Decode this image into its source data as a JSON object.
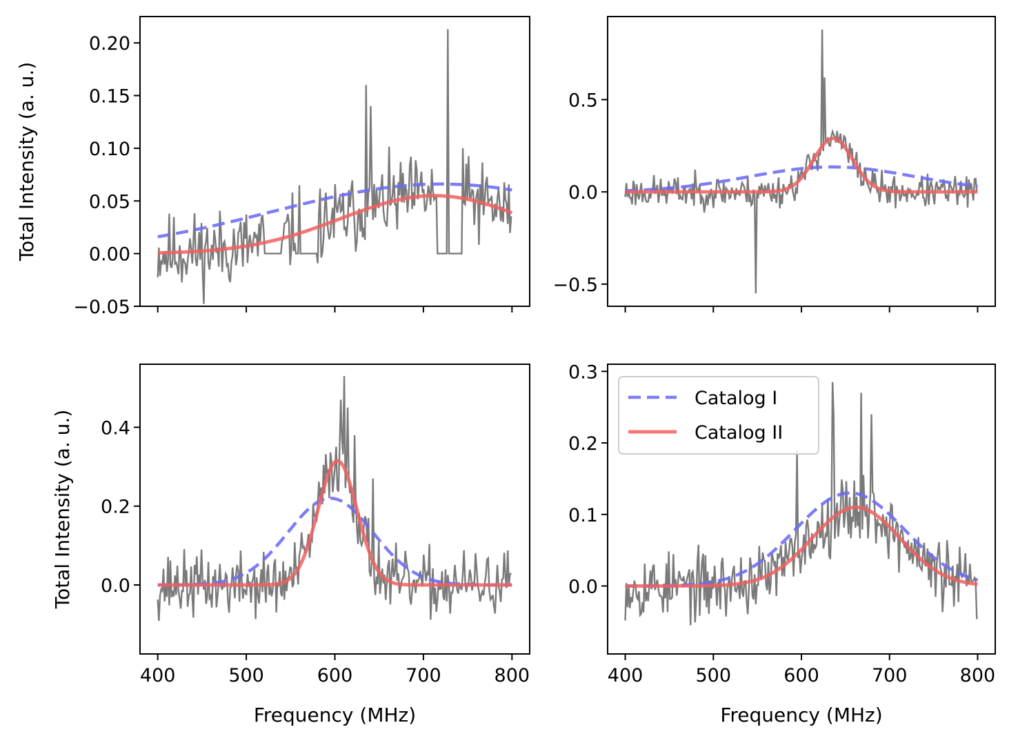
{
  "chart_data": [
    {
      "type": "line",
      "panel": "top-left",
      "xlabel": "",
      "ylabel": "Total Intensity (a. u.)",
      "xlim": [
        380,
        820
      ],
      "ylim": [
        -0.05,
        0.225
      ],
      "xticks": [
        400,
        500,
        600,
        700,
        800
      ],
      "xtick_labels_shown": false,
      "yticks": [
        -0.05,
        0.0,
        0.05,
        0.1,
        0.15,
        0.2
      ],
      "ytick_labels": [
        "−0.05",
        "0.00",
        "0.05",
        "0.10",
        "0.15",
        "0.20"
      ],
      "grid": false,
      "noise": {
        "amp": 0.032,
        "seed": 11,
        "spikes": [
          [
            560,
            0.065
          ],
          [
            635,
            0.16
          ],
          [
            640,
            0.14
          ],
          [
            727,
            0.213
          ],
          [
            745,
            0.1
          ]
        ],
        "gaps": [
          [
            520,
            540
          ],
          [
            555,
            580
          ],
          [
            715,
            745
          ]
        ]
      },
      "series": [
        {
          "name": "Catalog I",
          "model": "gauss",
          "amp": 0.066,
          "center": 720,
          "sigma": 190
        },
        {
          "name": "Catalog II",
          "model": "gauss",
          "amp": 0.055,
          "center": 712,
          "sigma": 105
        }
      ]
    },
    {
      "type": "line",
      "panel": "top-right",
      "xlabel": "",
      "ylabel": "",
      "xlim": [
        380,
        820
      ],
      "ylim": [
        -0.62,
        0.95
      ],
      "xticks": [
        400,
        500,
        600,
        700,
        800
      ],
      "xtick_labels_shown": false,
      "yticks": [
        -0.5,
        0.0,
        0.5
      ],
      "ytick_labels": [
        "−0.5",
        "0.0",
        "0.5"
      ],
      "grid": false,
      "noise": {
        "amp": 0.075,
        "seed": 23,
        "spikes": [
          [
            548,
            -0.55
          ],
          [
            624,
            0.88
          ],
          [
            626,
            0.62
          ],
          [
            634,
            0.3
          ],
          [
            640,
            0.33
          ]
        ],
        "gaps": []
      },
      "series": [
        {
          "name": "Catalog I",
          "model": "gauss",
          "amp": 0.135,
          "center": 635,
          "sigma": 95
        },
        {
          "name": "Catalog II",
          "model": "gauss",
          "amp": 0.29,
          "center": 636,
          "sigma": 22
        }
      ]
    },
    {
      "type": "line",
      "panel": "bottom-left",
      "xlabel": "Frequency (MHz)",
      "ylabel": "Total Intensity (a. u.)",
      "xlim": [
        380,
        820
      ],
      "ylim": [
        -0.175,
        0.56
      ],
      "xticks": [
        400,
        500,
        600,
        700,
        800
      ],
      "xtick_labels": [
        "400",
        "500",
        "600",
        "700",
        "800"
      ],
      "yticks": [
        0.0,
        0.2,
        0.4
      ],
      "ytick_labels": [
        "0.0",
        "0.2",
        "0.4"
      ],
      "grid": false,
      "noise": {
        "amp": 0.07,
        "seed": 37,
        "spikes": [
          [
            607,
            0.47
          ],
          [
            610,
            0.53
          ],
          [
            614,
            0.45
          ],
          [
            622,
            0.38
          ],
          [
            643,
            0.27
          ]
        ],
        "gaps": []
      },
      "series": [
        {
          "name": "Catalog I",
          "model": "gauss",
          "amp": 0.22,
          "center": 595,
          "sigma": 48
        },
        {
          "name": "Catalog II",
          "model": "gauss",
          "amp": 0.315,
          "center": 603,
          "sigma": 22
        }
      ]
    },
    {
      "type": "line",
      "panel": "bottom-right",
      "xlabel": "Frequency (MHz)",
      "ylabel": "",
      "xlim": [
        380,
        820
      ],
      "ylim": [
        -0.095,
        0.31
      ],
      "xticks": [
        400,
        500,
        600,
        700,
        800
      ],
      "xtick_labels": [
        "400",
        "500",
        "600",
        "700",
        "800"
      ],
      "yticks": [
        0.0,
        0.1,
        0.2,
        0.3
      ],
      "ytick_labels": [
        "0.0",
        "0.1",
        "0.2",
        "0.3"
      ],
      "grid": false,
      "noise": {
        "amp": 0.04,
        "seed": 53,
        "spikes": [
          [
            595,
            0.19
          ],
          [
            635,
            0.285
          ],
          [
            637,
            0.24
          ],
          [
            668,
            0.27
          ],
          [
            680,
            0.24
          ]
        ],
        "gaps": []
      },
      "series": [
        {
          "name": "Catalog I",
          "model": "gauss",
          "amp": 0.13,
          "center": 655,
          "sigma": 62
        },
        {
          "name": "Catalog II",
          "model": "gauss",
          "amp": 0.11,
          "center": 662,
          "sigma": 50
        }
      ],
      "legend": {
        "location": "upper-left",
        "entries": [
          "Catalog I",
          "Catalog II"
        ]
      }
    }
  ],
  "colors": {
    "catalog_i": "#6b6bf5",
    "catalog_ii": "#f06060",
    "observed": "#7a7a7a",
    "axes": "#000000"
  }
}
